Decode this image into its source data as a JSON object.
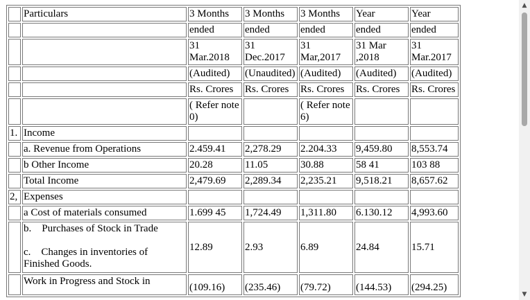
{
  "table": {
    "header": {
      "particulars": "Particulars",
      "periods": [
        [
          "3 Months",
          "ended",
          "31 Mar.2018",
          "(Audited)",
          "Rs. Crores",
          "( Refer note 0)"
        ],
        [
          "3 Months",
          "ended",
          "31 Dec.2017",
          "(Unaudited)",
          "Rs. Crores",
          ""
        ],
        [
          "3 Months",
          "ended",
          "31 Mar,2017",
          "(Audited)",
          "Rs. Crores",
          "( Refer note 6)"
        ],
        [
          "Year",
          "ended",
          "31 Mar ,2018",
          "(Audited)",
          "Rs. Crores",
          ""
        ],
        [
          "Year",
          "ended",
          "31 Mar.2017",
          "(Audited)",
          "Rs. Crores",
          ""
        ]
      ]
    },
    "income": {
      "number": "1.",
      "title": "Income",
      "rows": [
        {
          "label": "a. Revenue from Operations",
          "values": [
            "2.459.41",
            "2,278.29",
            "2.204.33",
            "9,459.80",
            "8,553.74"
          ]
        },
        {
          "label": "b Other Income",
          "values": [
            "20.28",
            "11.05",
            "30.88",
            "58 41",
            "103 88"
          ]
        },
        {
          "label": "Total Income",
          "values": [
            "2,479.69",
            "2,289.34",
            "2,235.21",
            "9,518.21",
            "8,657.62"
          ]
        }
      ]
    },
    "expenses": {
      "number": "2,",
      "title": "Expenses",
      "cost_row": {
        "label": "a Cost of materials consumed",
        "values": [
          "1.699 45",
          "1,724.49",
          "1,311.80",
          "6.130.12",
          "4,993.60"
        ]
      },
      "purchases": {
        "label_b": "b.    Purchases of Stock in Trade",
        "label_c": "c.    Changes in inventories of Finished Goods.",
        "values": [
          "12.89",
          "2.93",
          "6.89",
          "24.84",
          "15.71"
        ]
      },
      "wip_row": {
        "label": "Work in Progress and Stock in",
        "values": [
          "(109.16)",
          "(235.46)",
          "(79.72)",
          "(144.53)",
          "(294.25)"
        ]
      }
    }
  },
  "scrollbar": {
    "up_icon": "▲",
    "down_icon": "▼"
  }
}
